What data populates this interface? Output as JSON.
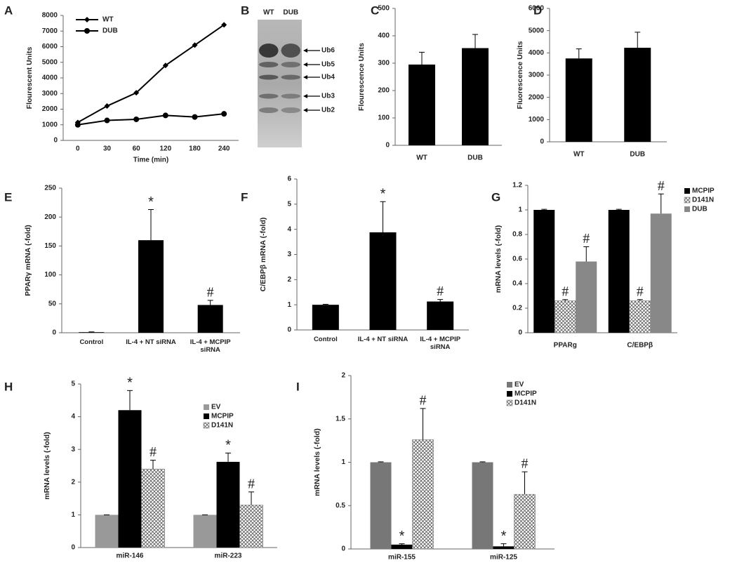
{
  "chart_data": [
    {
      "type": "line",
      "panel": "A",
      "ylabel": "Flourescent Units",
      "xlabel": "Time (min)",
      "categories": [
        "0",
        "30",
        "60",
        "120",
        "180",
        "240"
      ],
      "series": [
        {
          "name": "WT",
          "color": "#000000",
          "marker": "diamond",
          "values": [
            1150,
            2200,
            3050,
            4800,
            6100,
            7400
          ]
        },
        {
          "name": "DUB",
          "color": "#000000",
          "marker": "circle",
          "values": [
            1000,
            1280,
            1350,
            1600,
            1500,
            1700
          ]
        }
      ],
      "ylim": [
        0,
        8000
      ],
      "yticks": [
        0,
        1000,
        2000,
        3000,
        4000,
        5000,
        6000,
        7000,
        8000
      ],
      "legend": "upper left"
    },
    {
      "type": "blot",
      "panel": "B",
      "lanes": [
        "WT",
        "DUB"
      ],
      "bands": [
        "Ub6",
        "Ub5",
        "Ub4",
        "Ub3",
        "Ub2"
      ]
    },
    {
      "type": "bar",
      "panel": "C",
      "ylabel": "Flourescence Units",
      "categories": [
        "WT",
        "DUB"
      ],
      "values": [
        295,
        355
      ],
      "errors": [
        45,
        50
      ],
      "color": "#000000",
      "ylim": [
        0,
        500
      ],
      "yticks": [
        0,
        100,
        200,
        300,
        400,
        500
      ]
    },
    {
      "type": "bar",
      "panel": "D",
      "ylabel": "Fluorescence Units",
      "categories": [
        "WT",
        "DUB"
      ],
      "values": [
        3750,
        4230
      ],
      "errors": [
        430,
        700
      ],
      "color": "#000000",
      "ylim": [
        0,
        6000
      ],
      "yticks": [
        0,
        1000,
        2000,
        3000,
        4000,
        5000,
        6000
      ]
    },
    {
      "type": "bar",
      "panel": "E",
      "ylabel": "PPARγ mRNA (-fold)",
      "categories": [
        "Control",
        "IL-4 + NT siRNA",
        "IL-4 + MCPIP siRNA"
      ],
      "values": [
        1,
        160,
        48
      ],
      "errors": [
        0.5,
        53,
        8
      ],
      "annotations": [
        null,
        "*",
        "#"
      ],
      "color": "#000000",
      "ylim": [
        0,
        250
      ],
      "yticks": [
        0,
        50,
        100,
        150,
        200,
        250
      ]
    },
    {
      "type": "bar",
      "panel": "F",
      "ylabel": "C/EBPβ mRNA (-fold)",
      "categories": [
        "Control",
        "IL-4 + NT siRNA",
        "IL-4 + MCPIP siRNA"
      ],
      "values": [
        1,
        3.88,
        1.13
      ],
      "errors": [
        0.02,
        1.22,
        0.08
      ],
      "annotations": [
        null,
        "*",
        "#"
      ],
      "color": "#000000",
      "ylim": [
        0,
        6
      ],
      "yticks": [
        0,
        1,
        2,
        3,
        4,
        5,
        6
      ]
    },
    {
      "type": "bar",
      "panel": "G",
      "ylabel": "mRNA levels (-fold)",
      "categories": [
        "PPARg",
        "C/EBPβ"
      ],
      "series": [
        {
          "name": "MCPIP",
          "color": "#000000",
          "values": [
            1,
            1
          ],
          "errors": [
            0.005,
            0.005
          ]
        },
        {
          "name": "D141N",
          "color": "#ffffff",
          "pattern": "crosshatch",
          "values": [
            0.26,
            0.26
          ],
          "errors": [
            0.01,
            0.01
          ],
          "annotations": [
            "#",
            "#"
          ]
        },
        {
          "name": "DUB",
          "color": "#888888",
          "values": [
            0.58,
            0.97
          ],
          "errors": [
            0.12,
            0.16
          ],
          "annotations": [
            "#",
            "#"
          ]
        }
      ],
      "ylim": [
        0,
        1.2
      ],
      "yticks": [
        0,
        0.2,
        0.4,
        0.6,
        0.8,
        1,
        1.2
      ],
      "legend": "right"
    },
    {
      "type": "bar",
      "panel": "H",
      "ylabel": "mRNA levels (-fold)",
      "categories": [
        "miR-146",
        "miR-223"
      ],
      "series": [
        {
          "name": "EV",
          "color": "#999999",
          "values": [
            1,
            1
          ],
          "errors": [
            0,
            0
          ]
        },
        {
          "name": "MCPIP",
          "color": "#000000",
          "values": [
            4.2,
            2.62
          ],
          "errors": [
            0.6,
            0.27
          ],
          "annotations": [
            "*",
            "*"
          ]
        },
        {
          "name": "D141N",
          "color": "#ffffff",
          "pattern": "crosshatch",
          "values": [
            2.4,
            1.3
          ],
          "errors": [
            0.27,
            0.4
          ],
          "annotations": [
            "#",
            "#"
          ]
        }
      ],
      "ylim": [
        0,
        5
      ],
      "yticks": [
        0,
        1,
        2,
        3,
        4,
        5
      ],
      "legend": "upper right"
    },
    {
      "type": "bar",
      "panel": "I",
      "ylabel": "mRNA levels (-fold)",
      "categories": [
        "miR-155",
        "miR-125"
      ],
      "series": [
        {
          "name": "EV",
          "color": "#777777",
          "values": [
            1,
            1
          ],
          "errors": [
            0.005,
            0.005
          ]
        },
        {
          "name": "MCPIP",
          "color": "#000000",
          "values": [
            0.05,
            0.03
          ],
          "errors": [
            0.01,
            0.03
          ],
          "annotations": [
            "*",
            "*"
          ]
        },
        {
          "name": "D141N",
          "color": "#ffffff",
          "pattern": "crosshatch",
          "values": [
            1.26,
            0.63
          ],
          "errors": [
            0.36,
            0.26
          ],
          "annotations": [
            "#",
            "#"
          ]
        }
      ],
      "ylim": [
        0,
        2
      ],
      "yticks": [
        0,
        0.5,
        1,
        1.5,
        2
      ],
      "legend": "upper right"
    }
  ]
}
